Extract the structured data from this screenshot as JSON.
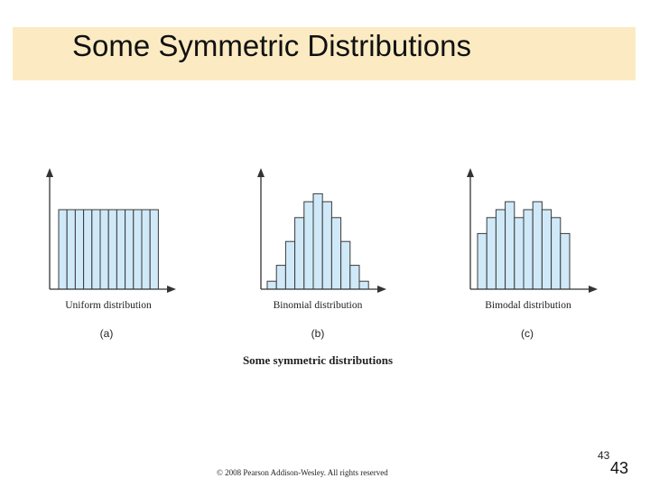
{
  "slide": {
    "title": "Some Symmetric Distributions",
    "footer": "© 2008 Pearson Addison-Wesley. All rights reserved",
    "page_number_small": "43",
    "page_number_large": "43"
  },
  "figure": {
    "caption": "Some symmetric distributions"
  },
  "colors": {
    "title_band": "#fcebc2",
    "bar_fill": "#cfe9f8",
    "bar_stroke": "#3a3a3a",
    "axis": "#333333"
  },
  "chart_data": [
    {
      "type": "bar",
      "label": "(a)",
      "xlabel": "Uniform distribution",
      "ylabel": "",
      "values": [
        10,
        10,
        10,
        10,
        10,
        10,
        10,
        10,
        10,
        10,
        10,
        10
      ],
      "ylim": [
        0,
        15
      ]
    },
    {
      "type": "bar",
      "label": "(b)",
      "xlabel": "Binomial distribution",
      "ylabel": "",
      "values": [
        1,
        3,
        6,
        9,
        11,
        12,
        11,
        9,
        6,
        3,
        1
      ],
      "ylim": [
        0,
        15
      ]
    },
    {
      "type": "bar",
      "label": "(c)",
      "xlabel": "Bimodal distribution",
      "ylabel": "",
      "values": [
        7,
        9,
        10,
        11,
        9,
        10,
        11,
        10,
        9,
        7
      ],
      "ylim": [
        0,
        15
      ]
    }
  ]
}
